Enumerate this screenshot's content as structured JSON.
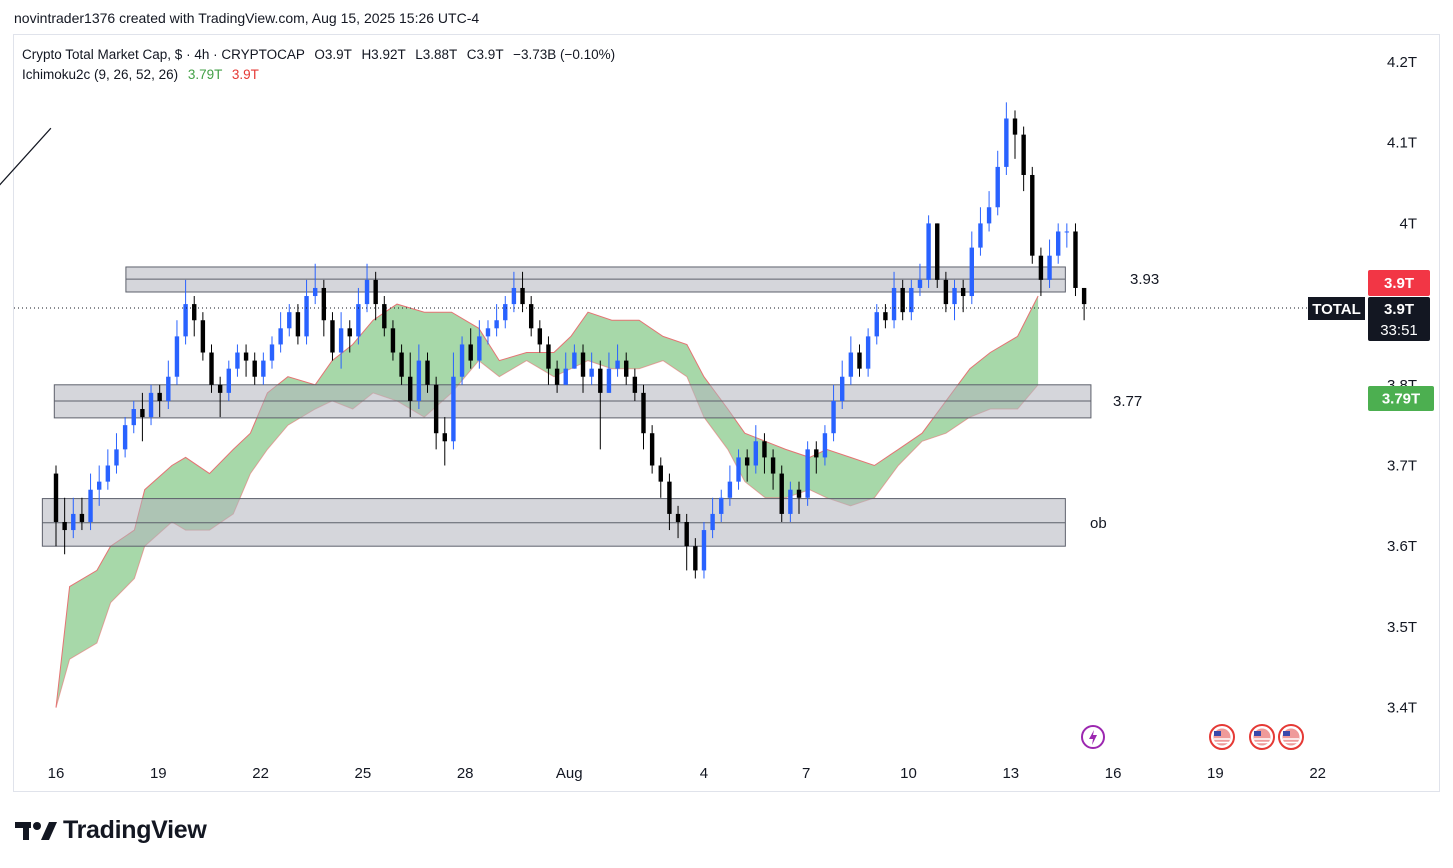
{
  "header": {
    "attribution": "novintrader1376 created with TradingView.com, Aug 15, 2025 15:26 UTC-4"
  },
  "legend": {
    "symbol_line": "Crypto Total Market Cap, $ · 4h · CRYPTOCAP",
    "ohlc": {
      "o": "O3.9T",
      "h": "H3.92T",
      "l": "L3.88T",
      "c": "C3.9T",
      "change": "−3.73B (−0.10%)"
    },
    "indicator_name": "Ichimoku2c (9, 26, 52, 26)",
    "indicator_val1": "3.79T",
    "indicator_val2": "3.9T"
  },
  "price_axis": {
    "ticks": [
      "4.2T",
      "4.1T",
      "4T",
      "3.8T",
      "3.7T",
      "3.6T",
      "3.5T",
      "3.4T"
    ]
  },
  "time_axis": {
    "ticks": [
      "16",
      "19",
      "22",
      "25",
      "28",
      "Aug",
      "4",
      "7",
      "10",
      "13",
      "16",
      "19",
      "22"
    ]
  },
  "badges": {
    "last_price": "3.9T",
    "symbol": "TOTAL",
    "symbol_price": "3.9T",
    "countdown": "33:51",
    "cloud_value": "3.79T"
  },
  "zones": [
    {
      "label": "3.93",
      "top": 3.946,
      "mid": 3.931,
      "bottom": 3.915
    },
    {
      "label": "3.77",
      "top": 3.8,
      "mid": 3.78,
      "bottom": 3.759
    },
    {
      "label": "ob",
      "top": 3.659,
      "mid": 3.629,
      "bottom": 3.6
    }
  ],
  "trendline": {
    "from": {
      "x": 5.3,
      "y": 3.624
    },
    "to": {
      "x": 15.85,
      "y": 4.118
    }
  },
  "colors": {
    "up": "#2962ff",
    "down": "#000000",
    "cloud": "#81c784",
    "cloud_edge": "#e57373",
    "last": "#f23645",
    "cloud_badge": "#4caf50"
  },
  "footer": {
    "brand": "TradingView"
  },
  "chart_data": {
    "type": "candlestick",
    "x_unit": "day (Jul 16 = 16, Aug 1 = 32, Aug 16 = 47)",
    "ylim": [
      3.35,
      4.22
    ],
    "candles": [
      [
        3.69,
        3.63,
        3.7,
        3.6
      ],
      [
        3.63,
        3.62,
        3.66,
        3.59
      ],
      [
        3.62,
        3.64,
        3.66,
        3.61
      ],
      [
        3.64,
        3.63,
        3.66,
        3.62
      ],
      [
        3.63,
        3.67,
        3.69,
        3.62
      ],
      [
        3.67,
        3.68,
        3.7,
        3.65
      ],
      [
        3.68,
        3.7,
        3.72,
        3.67
      ],
      [
        3.7,
        3.72,
        3.74,
        3.69
      ],
      [
        3.72,
        3.75,
        3.76,
        3.71
      ],
      [
        3.75,
        3.77,
        3.78,
        3.74
      ],
      [
        3.77,
        3.76,
        3.79,
        3.73
      ],
      [
        3.76,
        3.79,
        3.8,
        3.75
      ],
      [
        3.79,
        3.78,
        3.8,
        3.76
      ],
      [
        3.78,
        3.81,
        3.83,
        3.77
      ],
      [
        3.81,
        3.86,
        3.88,
        3.8
      ],
      [
        3.86,
        3.9,
        3.93,
        3.85
      ],
      [
        3.9,
        3.88,
        3.91,
        3.86
      ],
      [
        3.88,
        3.84,
        3.89,
        3.83
      ],
      [
        3.84,
        3.8,
        3.85,
        3.79
      ],
      [
        3.8,
        3.79,
        3.81,
        3.76
      ],
      [
        3.79,
        3.82,
        3.83,
        3.78
      ],
      [
        3.82,
        3.84,
        3.85,
        3.81
      ],
      [
        3.84,
        3.83,
        3.85,
        3.81
      ],
      [
        3.83,
        3.81,
        3.84,
        3.8
      ],
      [
        3.81,
        3.83,
        3.84,
        3.8
      ],
      [
        3.83,
        3.85,
        3.86,
        3.82
      ],
      [
        3.85,
        3.87,
        3.89,
        3.84
      ],
      [
        3.87,
        3.89,
        3.9,
        3.86
      ],
      [
        3.89,
        3.86,
        3.9,
        3.85
      ],
      [
        3.86,
        3.91,
        3.93,
        3.85
      ],
      [
        3.91,
        3.92,
        3.95,
        3.9
      ],
      [
        3.92,
        3.88,
        3.93,
        3.86
      ],
      [
        3.88,
        3.84,
        3.89,
        3.83
      ],
      [
        3.84,
        3.87,
        3.89,
        3.82
      ],
      [
        3.87,
        3.86,
        3.88,
        3.84
      ],
      [
        3.86,
        3.9,
        3.92,
        3.85
      ],
      [
        3.9,
        3.93,
        3.95,
        3.89
      ],
      [
        3.93,
        3.9,
        3.94,
        3.88
      ],
      [
        3.9,
        3.87,
        3.91,
        3.86
      ],
      [
        3.87,
        3.84,
        3.88,
        3.83
      ],
      [
        3.84,
        3.81,
        3.85,
        3.8
      ],
      [
        3.81,
        3.78,
        3.84,
        3.76
      ],
      [
        3.78,
        3.83,
        3.85,
        3.77
      ],
      [
        3.83,
        3.8,
        3.84,
        3.79
      ],
      [
        3.8,
        3.74,
        3.81,
        3.72
      ],
      [
        3.74,
        3.73,
        3.76,
        3.7
      ],
      [
        3.73,
        3.81,
        3.84,
        3.72
      ],
      [
        3.81,
        3.85,
        3.86,
        3.8
      ],
      [
        3.85,
        3.83,
        3.87,
        3.82
      ],
      [
        3.83,
        3.86,
        3.88,
        3.82
      ],
      [
        3.86,
        3.87,
        3.88,
        3.85
      ],
      [
        3.87,
        3.88,
        3.9,
        3.86
      ],
      [
        3.88,
        3.9,
        3.91,
        3.87
      ],
      [
        3.9,
        3.92,
        3.94,
        3.89
      ],
      [
        3.92,
        3.9,
        3.94,
        3.89
      ],
      [
        3.9,
        3.87,
        3.91,
        3.86
      ],
      [
        3.87,
        3.85,
        3.88,
        3.84
      ],
      [
        3.85,
        3.82,
        3.86,
        3.8
      ],
      [
        3.82,
        3.8,
        3.83,
        3.79
      ],
      [
        3.8,
        3.82,
        3.84,
        3.8
      ],
      [
        3.82,
        3.84,
        3.85,
        3.82
      ],
      [
        3.84,
        3.81,
        3.85,
        3.79
      ],
      [
        3.81,
        3.82,
        3.84,
        3.8
      ],
      [
        3.82,
        3.79,
        3.83,
        3.72
      ],
      [
        3.79,
        3.82,
        3.84,
        3.79
      ],
      [
        3.82,
        3.83,
        3.85,
        3.81
      ],
      [
        3.83,
        3.81,
        3.84,
        3.8
      ],
      [
        3.81,
        3.79,
        3.82,
        3.78
      ],
      [
        3.79,
        3.74,
        3.8,
        3.72
      ],
      [
        3.74,
        3.7,
        3.75,
        3.69
      ],
      [
        3.7,
        3.68,
        3.71,
        3.66
      ],
      [
        3.68,
        3.64,
        3.69,
        3.62
      ],
      [
        3.64,
        3.63,
        3.65,
        3.61
      ],
      [
        3.63,
        3.6,
        3.64,
        3.57
      ],
      [
        3.6,
        3.57,
        3.61,
        3.56
      ],
      [
        3.57,
        3.62,
        3.63,
        3.56
      ],
      [
        3.62,
        3.64,
        3.66,
        3.61
      ],
      [
        3.64,
        3.66,
        3.67,
        3.63
      ],
      [
        3.66,
        3.68,
        3.7,
        3.65
      ],
      [
        3.68,
        3.71,
        3.72,
        3.67
      ],
      [
        3.71,
        3.7,
        3.72,
        3.68
      ],
      [
        3.7,
        3.73,
        3.75,
        3.69
      ],
      [
        3.73,
        3.71,
        3.74,
        3.69
      ],
      [
        3.71,
        3.69,
        3.72,
        3.67
      ],
      [
        3.69,
        3.64,
        3.7,
        3.63
      ],
      [
        3.64,
        3.67,
        3.68,
        3.63
      ],
      [
        3.67,
        3.66,
        3.68,
        3.64
      ],
      [
        3.66,
        3.72,
        3.73,
        3.65
      ],
      [
        3.72,
        3.71,
        3.73,
        3.69
      ],
      [
        3.71,
        3.74,
        3.75,
        3.7
      ],
      [
        3.74,
        3.78,
        3.8,
        3.73
      ],
      [
        3.78,
        3.81,
        3.83,
        3.77
      ],
      [
        3.81,
        3.84,
        3.86,
        3.8
      ],
      [
        3.84,
        3.82,
        3.85,
        3.81
      ],
      [
        3.82,
        3.86,
        3.87,
        3.81
      ],
      [
        3.86,
        3.89,
        3.9,
        3.85
      ],
      [
        3.89,
        3.88,
        3.9,
        3.87
      ],
      [
        3.88,
        3.92,
        3.94,
        3.87
      ],
      [
        3.92,
        3.89,
        3.93,
        3.88
      ],
      [
        3.89,
        3.92,
        3.93,
        3.88
      ],
      [
        3.92,
        3.93,
        3.95,
        3.91
      ],
      [
        3.93,
        4.0,
        4.01,
        3.92
      ],
      [
        4.0,
        3.93,
        4.0,
        3.92
      ],
      [
        3.93,
        3.9,
        3.94,
        3.89
      ],
      [
        3.9,
        3.92,
        3.93,
        3.88
      ],
      [
        3.92,
        3.91,
        3.93,
        3.89
      ],
      [
        3.91,
        3.97,
        3.99,
        3.9
      ],
      [
        3.97,
        4.0,
        4.02,
        3.96
      ],
      [
        4.0,
        4.02,
        4.04,
        3.99
      ],
      [
        4.02,
        4.07,
        4.09,
        4.01
      ],
      [
        4.07,
        4.13,
        4.15,
        4.06
      ],
      [
        4.13,
        4.11,
        4.14,
        4.08
      ],
      [
        4.11,
        4.06,
        4.12,
        4.04
      ],
      [
        4.06,
        3.96,
        4.07,
        3.95
      ],
      [
        3.96,
        3.93,
        3.97,
        3.91
      ],
      [
        3.93,
        3.96,
        3.98,
        3.92
      ],
      [
        3.96,
        3.99,
        4.0,
        3.95
      ],
      [
        3.99,
        3.99,
        4.0,
        3.97
      ],
      [
        3.99,
        3.92,
        4.0,
        3.91
      ],
      [
        3.92,
        3.9,
        3.92,
        3.88
      ]
    ],
    "cloud_top": [
      [
        16.0,
        3.4
      ],
      [
        16.4,
        3.55
      ],
      [
        17.2,
        3.57
      ],
      [
        17.6,
        3.6
      ],
      [
        18.3,
        3.62
      ],
      [
        18.6,
        3.67
      ],
      [
        19.4,
        3.7
      ],
      [
        19.8,
        3.71
      ],
      [
        20.5,
        3.69
      ],
      [
        21.2,
        3.72
      ],
      [
        21.7,
        3.74
      ],
      [
        22.2,
        3.79
      ],
      [
        22.8,
        3.81
      ],
      [
        23.6,
        3.8
      ],
      [
        24.1,
        3.83
      ],
      [
        24.7,
        3.85
      ],
      [
        25.3,
        3.88
      ],
      [
        26.0,
        3.9
      ],
      [
        26.8,
        3.89
      ],
      [
        27.6,
        3.89
      ],
      [
        28.4,
        3.87
      ],
      [
        29.0,
        3.83
      ],
      [
        29.8,
        3.84
      ],
      [
        30.6,
        3.84
      ],
      [
        31.1,
        3.86
      ],
      [
        31.6,
        3.89
      ],
      [
        32.3,
        3.88
      ],
      [
        33.1,
        3.88
      ],
      [
        33.8,
        3.86
      ],
      [
        34.5,
        3.85
      ],
      [
        35.0,
        3.81
      ],
      [
        35.7,
        3.77
      ],
      [
        36.2,
        3.74
      ],
      [
        36.8,
        3.73
      ],
      [
        37.4,
        3.72
      ],
      [
        38.1,
        3.71
      ],
      [
        38.6,
        3.72
      ],
      [
        39.3,
        3.71
      ],
      [
        40.0,
        3.7
      ],
      [
        40.7,
        3.72
      ],
      [
        41.4,
        3.74
      ],
      [
        42.1,
        3.78
      ],
      [
        42.8,
        3.82
      ],
      [
        43.4,
        3.84
      ],
      [
        44.2,
        3.86
      ],
      [
        44.8,
        3.91
      ]
    ],
    "cloud_bottom": [
      [
        16.0,
        3.4
      ],
      [
        16.4,
        3.46
      ],
      [
        17.2,
        3.48
      ],
      [
        17.6,
        3.53
      ],
      [
        18.3,
        3.56
      ],
      [
        18.6,
        3.6
      ],
      [
        19.4,
        3.63
      ],
      [
        19.8,
        3.62
      ],
      [
        20.5,
        3.62
      ],
      [
        21.2,
        3.64
      ],
      [
        21.7,
        3.69
      ],
      [
        22.2,
        3.72
      ],
      [
        22.8,
        3.75
      ],
      [
        23.6,
        3.77
      ],
      [
        24.1,
        3.78
      ],
      [
        24.7,
        3.77
      ],
      [
        25.3,
        3.79
      ],
      [
        26.0,
        3.78
      ],
      [
        26.8,
        3.76
      ],
      [
        27.6,
        3.79
      ],
      [
        28.4,
        3.83
      ],
      [
        29.0,
        3.81
      ],
      [
        29.8,
        3.83
      ],
      [
        30.6,
        3.81
      ],
      [
        31.1,
        3.82
      ],
      [
        31.6,
        3.83
      ],
      [
        32.3,
        3.82
      ],
      [
        33.1,
        3.82
      ],
      [
        33.8,
        3.83
      ],
      [
        34.5,
        3.81
      ],
      [
        35.0,
        3.76
      ],
      [
        35.7,
        3.72
      ],
      [
        36.2,
        3.68
      ],
      [
        36.8,
        3.66
      ],
      [
        37.4,
        3.66
      ],
      [
        38.1,
        3.67
      ],
      [
        38.6,
        3.66
      ],
      [
        39.3,
        3.65
      ],
      [
        40.0,
        3.66
      ],
      [
        40.7,
        3.7
      ],
      [
        41.4,
        3.73
      ],
      [
        42.1,
        3.74
      ],
      [
        42.8,
        3.76
      ],
      [
        43.4,
        3.77
      ],
      [
        44.2,
        3.77
      ],
      [
        44.8,
        3.8
      ]
    ]
  }
}
